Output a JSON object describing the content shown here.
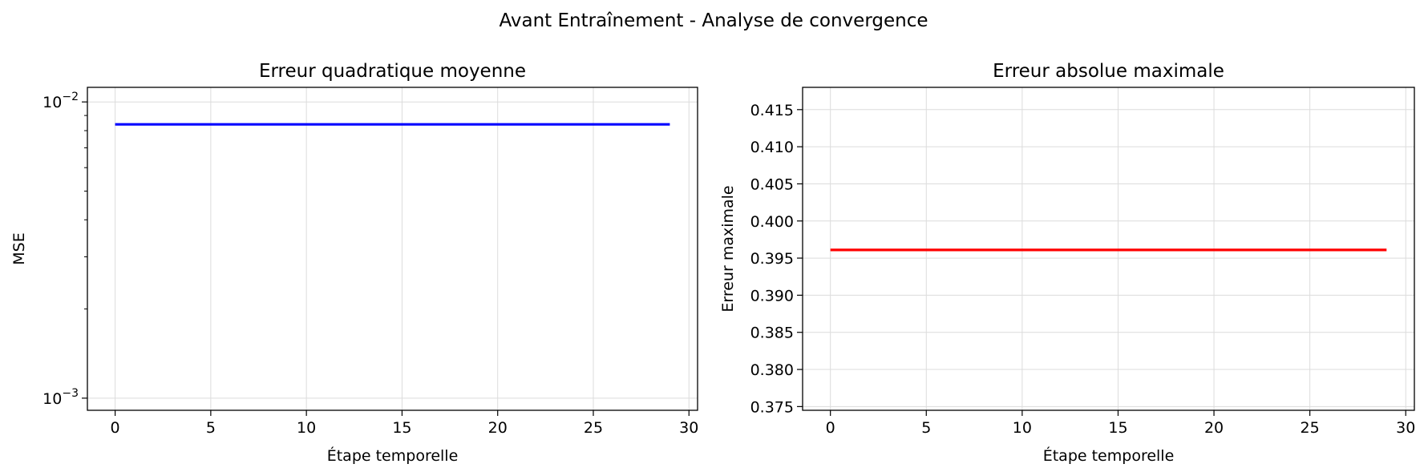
{
  "figure": {
    "suptitle": "Avant Entraînement - Analyse de convergence"
  },
  "chart_data": [
    {
      "type": "line",
      "title": "Erreur quadratique moyenne",
      "xlabel": "Étape temporelle",
      "ylabel": "MSE",
      "yscale": "log",
      "xlim": [
        -1.45,
        30.45
      ],
      "ylim": [
        0.00091,
        0.0112
      ],
      "xticks": [
        0,
        5,
        10,
        15,
        20,
        25,
        30
      ],
      "xtick_labels": [
        "0",
        "5",
        "10",
        "15",
        "20",
        "25",
        "30"
      ],
      "yticks": [
        0.001,
        0.01
      ],
      "ytick_labels": [
        {
          "base": "10",
          "exp": "−3"
        },
        {
          "base": "10",
          "exp": "−2"
        }
      ],
      "grid": true,
      "series": [
        {
          "color": "#0000ff",
          "x": [
            0,
            1,
            2,
            3,
            4,
            5,
            6,
            7,
            8,
            9,
            10,
            11,
            12,
            13,
            14,
            15,
            16,
            17,
            18,
            19,
            20,
            21,
            22,
            23,
            24,
            25,
            26,
            27,
            28,
            29
          ],
          "y": [
            0.0084,
            0.0084,
            0.0084,
            0.0084,
            0.0084,
            0.0084,
            0.0084,
            0.0084,
            0.0084,
            0.0084,
            0.0084,
            0.0084,
            0.0084,
            0.0084,
            0.0084,
            0.0084,
            0.0084,
            0.0084,
            0.0084,
            0.0084,
            0.0084,
            0.0084,
            0.0084,
            0.0084,
            0.0084,
            0.0084,
            0.0084,
            0.0084,
            0.0084,
            0.0084
          ]
        }
      ]
    },
    {
      "type": "line",
      "title": "Erreur absolue maximale",
      "xlabel": "Étape temporelle",
      "ylabel": "Erreur maximale",
      "yscale": "linear",
      "xlim": [
        -1.45,
        30.45
      ],
      "ylim": [
        0.3745,
        0.418
      ],
      "xticks": [
        0,
        5,
        10,
        15,
        20,
        25,
        30
      ],
      "xtick_labels": [
        "0",
        "5",
        "10",
        "15",
        "20",
        "25",
        "30"
      ],
      "yticks": [
        0.375,
        0.38,
        0.385,
        0.39,
        0.395,
        0.4,
        0.405,
        0.41,
        0.415
      ],
      "ytick_labels": [
        "0.375",
        "0.380",
        "0.385",
        "0.390",
        "0.395",
        "0.400",
        "0.405",
        "0.410",
        "0.415"
      ],
      "grid": true,
      "series": [
        {
          "color": "#ff0000",
          "x": [
            0,
            1,
            2,
            3,
            4,
            5,
            6,
            7,
            8,
            9,
            10,
            11,
            12,
            13,
            14,
            15,
            16,
            17,
            18,
            19,
            20,
            21,
            22,
            23,
            24,
            25,
            26,
            27,
            28,
            29
          ],
          "y": [
            0.3961,
            0.3961,
            0.3961,
            0.3961,
            0.3961,
            0.3961,
            0.3961,
            0.3961,
            0.3961,
            0.3961,
            0.3961,
            0.3961,
            0.3961,
            0.3961,
            0.3961,
            0.3961,
            0.3961,
            0.3961,
            0.3961,
            0.3961,
            0.3961,
            0.3961,
            0.3961,
            0.3961,
            0.3961,
            0.3961,
            0.3961,
            0.3961,
            0.3961,
            0.3961
          ]
        }
      ]
    }
  ]
}
